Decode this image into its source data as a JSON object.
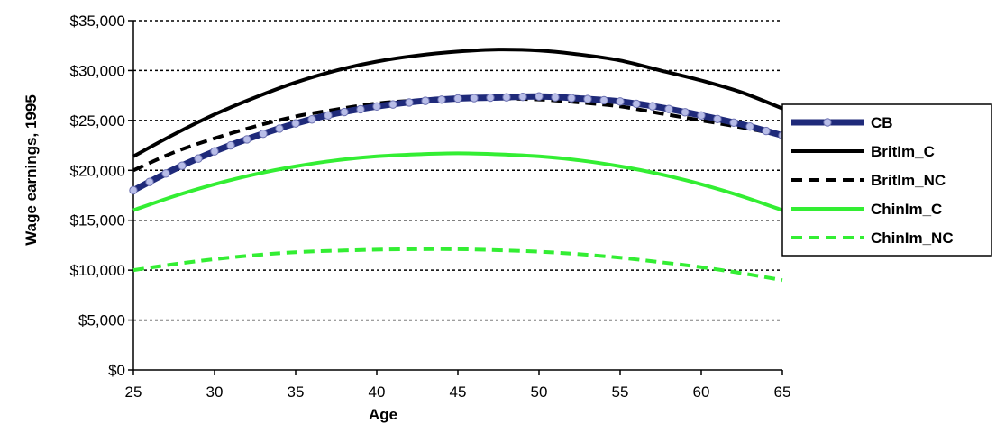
{
  "chart_data": {
    "type": "line",
    "xlabel": "Age",
    "ylabel": "Wage earnings, 1995",
    "xlim": [
      25,
      65
    ],
    "ylim": [
      0,
      35000
    ],
    "x_ticks": [
      "25",
      "30",
      "35",
      "40",
      "45",
      "50",
      "55",
      "60",
      "65"
    ],
    "y_ticks": [
      "$0",
      "$5,000",
      "$10,000",
      "$15,000",
      "$20,000",
      "$25,000",
      "$30,000",
      "$35,000"
    ],
    "grid": "horizontal dotted",
    "legend_position": "right",
    "x": [
      25,
      27.5,
      30,
      32.5,
      35,
      37.5,
      40,
      42.5,
      45,
      47.5,
      50,
      52.5,
      55,
      57.5,
      60,
      62.5,
      65
    ],
    "series": [
      {
        "name": "CB",
        "color": "#1f2a7a",
        "style": "thick-line-with-circle-markers",
        "values": [
          18000,
          20100,
          21900,
          23400,
          24700,
          25700,
          26400,
          26900,
          27200,
          27300,
          27400,
          27200,
          26900,
          26300,
          25500,
          24600,
          23500
        ]
      },
      {
        "name": "BritIm_C",
        "color": "#000000",
        "style": "solid",
        "values": [
          21400,
          23600,
          25600,
          27300,
          28800,
          30000,
          30900,
          31500,
          31900,
          32100,
          32000,
          31600,
          31000,
          30000,
          29000,
          27800,
          26200
        ]
      },
      {
        "name": "BritIm_NC",
        "color": "#000000",
        "style": "dashed",
        "values": [
          20000,
          21800,
          23200,
          24400,
          25400,
          26100,
          26700,
          27000,
          27200,
          27200,
          27100,
          26800,
          26400,
          25700,
          25000,
          24300,
          23500
        ]
      },
      {
        "name": "ChinIm_C",
        "color": "#33ee33",
        "style": "solid",
        "values": [
          16000,
          17400,
          18600,
          19600,
          20400,
          21000,
          21400,
          21600,
          21700,
          21600,
          21400,
          21000,
          20400,
          19600,
          18600,
          17400,
          16000
        ]
      },
      {
        "name": "ChinIm_NC",
        "color": "#33ee33",
        "style": "dashed",
        "values": [
          10000,
          10600,
          11100,
          11500,
          11800,
          11950,
          12050,
          12100,
          12100,
          12000,
          11850,
          11600,
          11250,
          10800,
          10300,
          9700,
          9000
        ]
      }
    ]
  }
}
